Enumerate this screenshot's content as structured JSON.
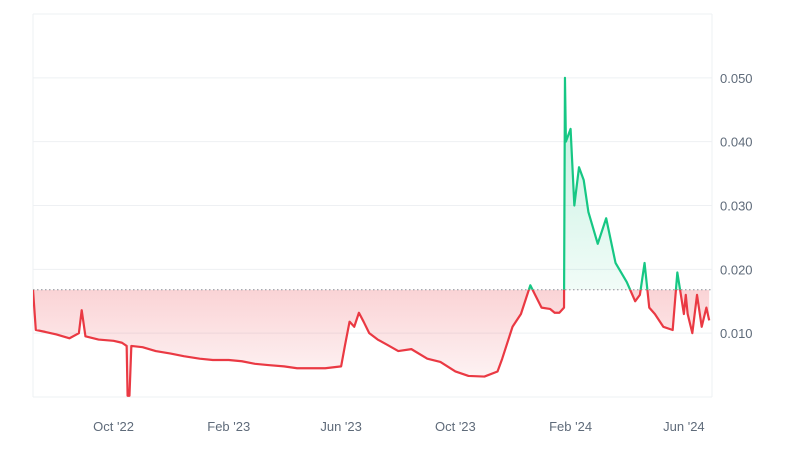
{
  "chart_data": {
    "type": "area",
    "title": "",
    "xlabel": "",
    "ylabel": "",
    "baseline": 0.0168,
    "xlim": [
      "2022-07-07",
      "2024-07-01"
    ],
    "ylim": [
      0.0,
      0.06
    ],
    "grid": true,
    "legend": "none",
    "x_ticks": [
      {
        "label": "Oct '22",
        "date": "2022-10-01"
      },
      {
        "label": "Feb '23",
        "date": "2023-02-01"
      },
      {
        "label": "Jun '23",
        "date": "2023-06-01"
      },
      {
        "label": "Oct '23",
        "date": "2023-10-01"
      },
      {
        "label": "Feb '24",
        "date": "2024-02-01"
      },
      {
        "label": "Jun '24",
        "date": "2024-06-01"
      }
    ],
    "y_ticks": [
      {
        "label": "0.010",
        "value": 0.01
      },
      {
        "label": "0.020",
        "value": 0.02
      },
      {
        "label": "0.030",
        "value": 0.03
      },
      {
        "label": "0.040",
        "value": 0.04
      },
      {
        "label": "0.050",
        "value": 0.05
      }
    ],
    "colors": {
      "above": "#16c784",
      "below": "#ea3943",
      "above_fill": "#16c784",
      "below_fill": "#ea3943",
      "grid": "#eef0f3",
      "axis_text": "#5f6b7a"
    },
    "series": [
      {
        "x": [
          "2022-07-07",
          "2022-07-10",
          "2022-07-20",
          "2022-08-01",
          "2022-08-15",
          "2022-08-25",
          "2022-08-28",
          "2022-09-01",
          "2022-09-15",
          "2022-10-01",
          "2022-10-10",
          "2022-10-15",
          "2022-10-16",
          "2022-10-18",
          "2022-10-20",
          "2022-11-01",
          "2022-11-15",
          "2022-12-01",
          "2022-12-15",
          "2023-01-01",
          "2023-01-15",
          "2023-02-01",
          "2023-02-15",
          "2023-03-01",
          "2023-03-15",
          "2023-04-01",
          "2023-04-15",
          "2023-05-01",
          "2023-05-15",
          "2023-06-01",
          "2023-06-05",
          "2023-06-10",
          "2023-06-15",
          "2023-06-20",
          "2023-06-25",
          "2023-07-01",
          "2023-07-10",
          "2023-07-20",
          "2023-08-01",
          "2023-08-15",
          "2023-09-01",
          "2023-09-15",
          "2023-10-01",
          "2023-10-15",
          "2023-11-01",
          "2023-11-15",
          "2023-11-20",
          "2023-12-01",
          "2023-12-10",
          "2023-12-20",
          "2024-01-01",
          "2024-01-10",
          "2024-01-15",
          "2024-01-20",
          "2024-01-25",
          "2024-01-26",
          "2024-01-27",
          "2024-02-01",
          "2024-02-05",
          "2024-02-10",
          "2024-02-15",
          "2024-02-20",
          "2024-03-01",
          "2024-03-10",
          "2024-03-20",
          "2024-04-01",
          "2024-04-10",
          "2024-04-15",
          "2024-04-20",
          "2024-04-25",
          "2024-05-01",
          "2024-05-10",
          "2024-05-20",
          "2024-05-25",
          "2024-06-01",
          "2024-06-03",
          "2024-06-05",
          "2024-06-10",
          "2024-06-15",
          "2024-06-20",
          "2024-06-25",
          "2024-06-28"
        ],
        "y": [
          0.0168,
          0.0105,
          0.0102,
          0.0098,
          0.0092,
          0.01,
          0.0136,
          0.0095,
          0.009,
          0.0088,
          0.0085,
          0.008,
          0.0002,
          0.0002,
          0.008,
          0.0078,
          0.0072,
          0.0068,
          0.0064,
          0.006,
          0.0058,
          0.0058,
          0.0056,
          0.0052,
          0.005,
          0.0048,
          0.0045,
          0.0045,
          0.0045,
          0.0048,
          0.008,
          0.0118,
          0.011,
          0.0132,
          0.0118,
          0.01,
          0.009,
          0.0082,
          0.0072,
          0.0075,
          0.006,
          0.0055,
          0.004,
          0.0033,
          0.0032,
          0.004,
          0.006,
          0.011,
          0.013,
          0.0175,
          0.014,
          0.0138,
          0.0132,
          0.0132,
          0.014,
          0.05,
          0.04,
          0.042,
          0.03,
          0.036,
          0.034,
          0.029,
          0.024,
          0.028,
          0.021,
          0.018,
          0.015,
          0.016,
          0.021,
          0.014,
          0.013,
          0.011,
          0.0105,
          0.0195,
          0.013,
          0.016,
          0.013,
          0.01,
          0.016,
          0.011,
          0.014,
          0.012
        ]
      }
    ]
  }
}
